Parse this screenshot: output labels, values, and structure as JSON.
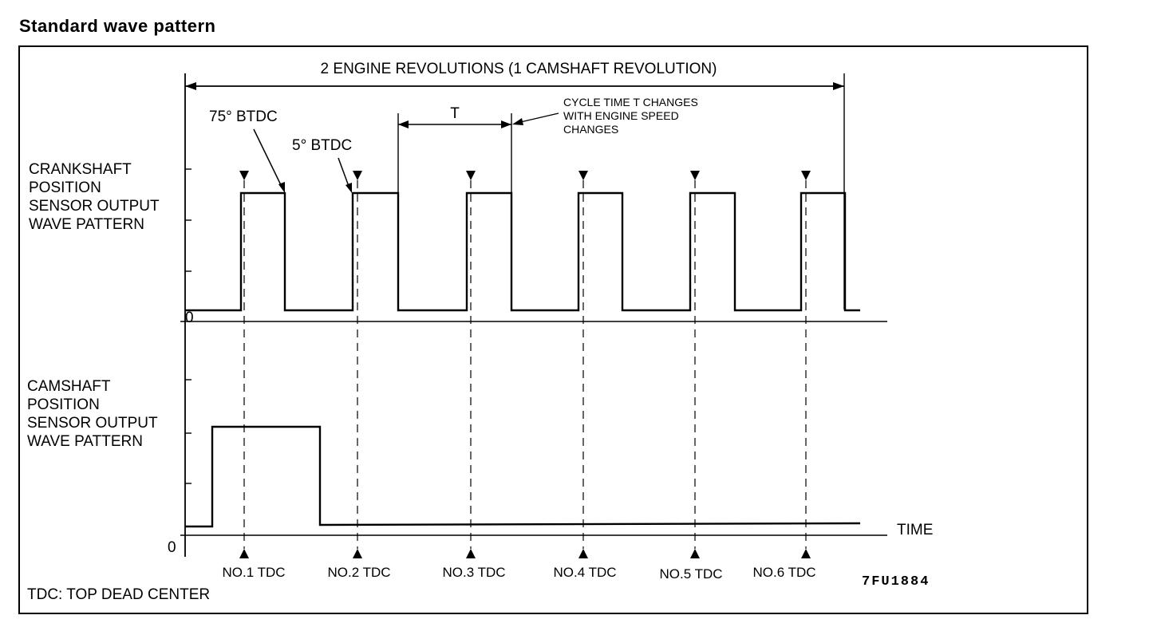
{
  "title": "Standard wave pattern",
  "span_label": "2 ENGINE REVOLUTIONS (1 CAMSHAFT REVOLUTION)",
  "crank_annotations": {
    "btdc_75": "75° BTDC",
    "btdc_5": "5° BTDC",
    "cycle_symbol": "T",
    "cycle_note": [
      "CYCLE TIME T CHANGES",
      "WITH ENGINE SPEED",
      "CHANGES"
    ]
  },
  "crank_label": [
    "CRANKSHAFT",
    "POSITION",
    "SENSOR OUTPUT",
    "WAVE PATTERN"
  ],
  "cam_label": [
    "CAMSHAFT",
    "POSITION",
    "SENSOR OUTPUT",
    "WAVE PATTERN"
  ],
  "zero_label": "0",
  "time_label": "TIME",
  "tdc_labels": [
    "NO.1 TDC",
    "NO.2 TDC",
    "NO.3 TDC",
    "NO.4 TDC",
    "NO.5 TDC",
    "NO.6 TDC"
  ],
  "legend": "TDC: TOP DEAD CENTER",
  "figure_code": "7FU1884"
}
